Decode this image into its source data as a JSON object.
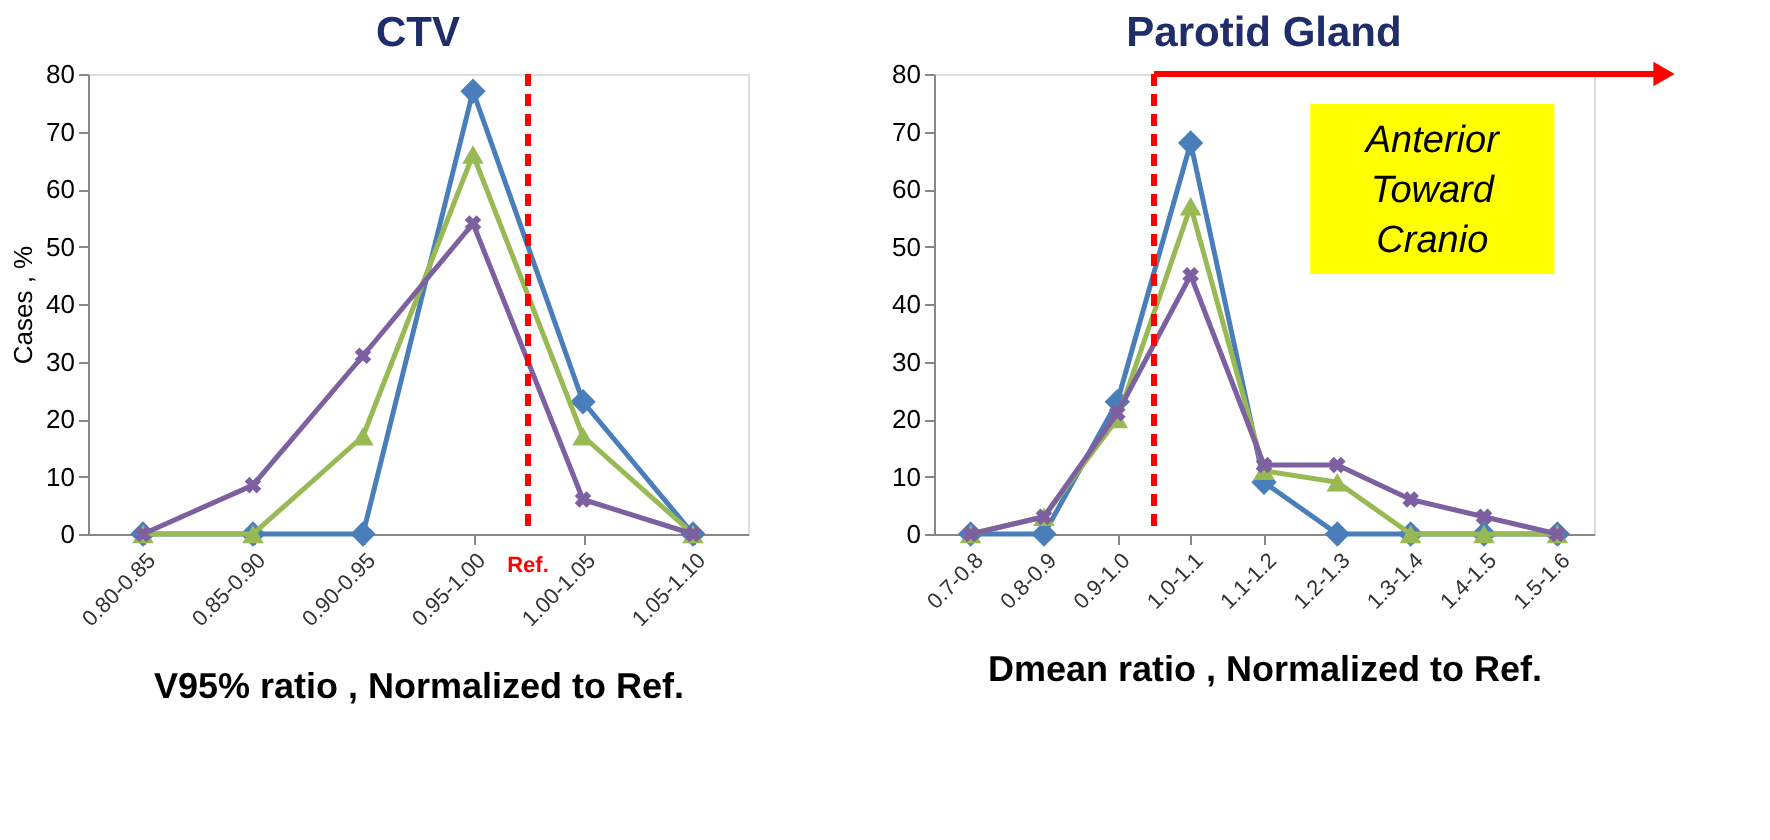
{
  "chart_data": [
    {
      "type": "line",
      "title": "CTV",
      "xlabel": "V95%  ratio , Normalized to Ref.",
      "ylabel": "Cases , %",
      "categories": [
        "0.80-0.85",
        "0.85-0.90",
        "0.90-0.95",
        "0.95-1.00",
        "1.00-1.05",
        "1.05-1.10"
      ],
      "series": [
        {
          "color": "#4a7ebb",
          "marker": "diamond",
          "values": [
            0,
            0,
            0,
            77,
            23,
            0
          ]
        },
        {
          "color": "#98b954",
          "marker": "triangle",
          "values": [
            0,
            0,
            17,
            66,
            17,
            0
          ]
        },
        {
          "color": "#7d60a0",
          "marker": "cross",
          "values": [
            0,
            8.5,
            31,
            54,
            6,
            0
          ]
        }
      ],
      "ylim": [
        0,
        80
      ],
      "yticks": [
        0,
        10,
        20,
        30,
        40,
        50,
        60,
        70,
        80
      ],
      "ref_lines": [
        {
          "axis": "x",
          "value": "1.00-1.05",
          "label": "Ref.",
          "color": "#ff0000",
          "line_style": "dashed"
        }
      ]
    },
    {
      "type": "line",
      "title": "Parotid Gland",
      "xlabel": "Dmean ratio , Normalized to Ref.",
      "categories": [
        "0.7-0.8",
        "0.8-0.9",
        "0.9-1.0",
        "1.0-1.1",
        "1.1-1.2",
        "1.2-1.3",
        "1.3-1.4",
        "1.4-1.5",
        "1.5-1.6"
      ],
      "series": [
        {
          "color": "#4a7ebb",
          "marker": "diamond",
          "values": [
            0,
            0,
            23,
            68,
            9,
            0,
            0,
            0,
            0
          ]
        },
        {
          "color": "#98b954",
          "marker": "triangle",
          "values": [
            0,
            3,
            20,
            57,
            11,
            9,
            0,
            0,
            0
          ]
        },
        {
          "color": "#7d60a0",
          "marker": "cross",
          "values": [
            0,
            3,
            21,
            45,
            12,
            12,
            6,
            3,
            0
          ]
        }
      ],
      "ylim": [
        0,
        80
      ],
      "yticks": [
        0,
        10,
        20,
        30,
        40,
        50,
        60,
        70,
        80
      ],
      "ref_lines": [
        {
          "axis": "x",
          "value": "1.0-1.1",
          "label": null,
          "color": "#ff0000",
          "line_style": "dashed"
        }
      ],
      "annotations": [
        "Anterior\nToward\nCranio"
      ]
    }
  ]
}
